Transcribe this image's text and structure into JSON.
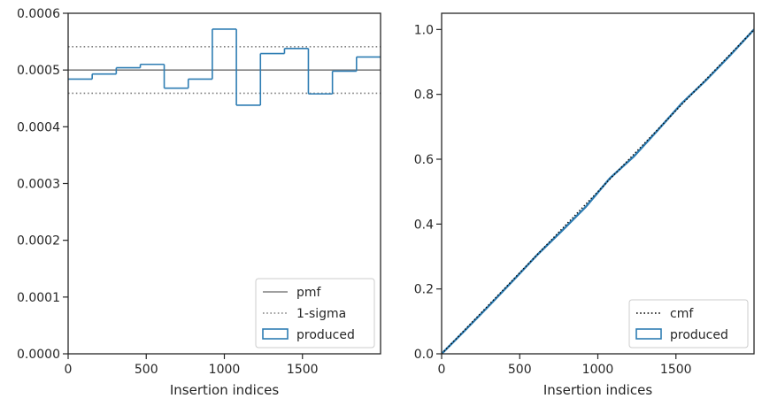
{
  "chart_data": [
    {
      "type": "line",
      "xlabel": "Insertion indices",
      "ylabel": "",
      "xlim": [
        0,
        2000
      ],
      "ylim": [
        0,
        0.0006
      ],
      "xticks": [
        0,
        500,
        1000,
        1500
      ],
      "xtick_labels": [
        "0",
        "500",
        "1000",
        "1500"
      ],
      "yticks": [
        0,
        0.0001,
        0.0002,
        0.0003,
        0.0004,
        0.0005,
        0.0006
      ],
      "ytick_labels": [
        "0.0000",
        "0.0001",
        "0.0002",
        "0.0003",
        "0.0004",
        "0.0005",
        "0.0006"
      ],
      "pmf": 0.0005,
      "sigma_bounds": [
        0.000459,
        0.000541
      ],
      "histogram": {
        "name": "produced",
        "bin_edges": [
          0,
          154,
          308,
          462,
          615,
          769,
          923,
          1077,
          1231,
          1385,
          1538,
          1692,
          1846,
          2000
        ],
        "values": [
          0.000484,
          0.000493,
          0.000504,
          0.00051,
          0.000468,
          0.000484,
          0.000572,
          0.000438,
          0.000529,
          0.000538,
          0.000458,
          0.000498,
          0.000523
        ]
      },
      "legend": {
        "placement": "lower-right",
        "entries": [
          {
            "label": "pmf",
            "style": "solid",
            "color": "#808080"
          },
          {
            "label": "1-sigma",
            "style": "dotted",
            "color": "#808080"
          },
          {
            "label": "produced",
            "style": "patch",
            "color": "#2e7db3"
          }
        ]
      }
    },
    {
      "type": "line",
      "xlabel": "Insertion indices",
      "ylabel": "",
      "xlim": [
        0,
        2000
      ],
      "ylim": [
        0,
        1.05
      ],
      "xticks": [
        0,
        500,
        1000,
        1500
      ],
      "xtick_labels": [
        "0",
        "500",
        "1000",
        "1500"
      ],
      "yticks": [
        0.0,
        0.2,
        0.4,
        0.6,
        0.8,
        1.0
      ],
      "ytick_labels": [
        "0.0",
        "0.2",
        "0.4",
        "0.6",
        "0.8",
        "1.0"
      ],
      "cmf": {
        "name": "cmf",
        "x": [
          0,
          2000
        ],
        "y": [
          0,
          1.0
        ]
      },
      "produced": {
        "name": "produced",
        "x": [
          0,
          154,
          308,
          462,
          615,
          769,
          923,
          1077,
          1231,
          1385,
          1538,
          1692,
          1846,
          2000
        ],
        "y": [
          0,
          0.0745,
          0.1505,
          0.2283,
          0.3066,
          0.3787,
          0.4532,
          0.5412,
          0.6087,
          0.6901,
          0.7727,
          0.8432,
          0.92,
          1.0
        ]
      },
      "legend": {
        "placement": "lower-right",
        "entries": [
          {
            "label": "cmf",
            "style": "dotted",
            "color": "#000000"
          },
          {
            "label": "produced",
            "style": "patch",
            "color": "#2e7db3"
          }
        ]
      }
    }
  ],
  "colors": {
    "histogram": "#2e7db3",
    "reference": "#808080",
    "cmf": "#000000",
    "axes": "#262626"
  }
}
